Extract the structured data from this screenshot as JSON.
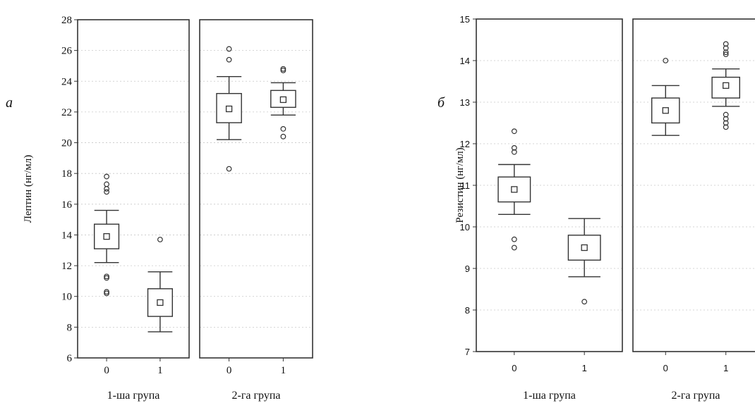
{
  "chart_data": [
    {
      "type": "box",
      "panel_letter": "а",
      "ylabel": "Лептин (нг/мл)",
      "ylim": [
        6,
        28
      ],
      "yticks": [
        6,
        8,
        10,
        12,
        14,
        16,
        18,
        20,
        22,
        24,
        26,
        28
      ],
      "groups": [
        {
          "label": "1-ша група",
          "boxes": [
            {
              "x": "0",
              "median": 13.9,
              "q1": 13.1,
              "q3": 14.7,
              "whisker_low": 12.2,
              "whisker_high": 15.6,
              "outliers": [
                17.8,
                17.3,
                17.0,
                16.8,
                11.3,
                11.2,
                10.3,
                10.2
              ]
            },
            {
              "x": "1",
              "median": 9.6,
              "q1": 8.7,
              "q3": 10.5,
              "whisker_low": 7.7,
              "whisker_high": 11.6,
              "outliers": [
                13.7
              ]
            }
          ]
        },
        {
          "label": "2-га група",
          "boxes": [
            {
              "x": "0",
              "median": 22.2,
              "q1": 21.3,
              "q3": 23.2,
              "whisker_low": 20.2,
              "whisker_high": 24.3,
              "outliers": [
                26.1,
                25.4,
                18.3
              ]
            },
            {
              "x": "1",
              "median": 22.8,
              "q1": 22.3,
              "q3": 23.4,
              "whisker_low": 21.8,
              "whisker_high": 23.9,
              "outliers": [
                24.8,
                24.7,
                20.9,
                20.4
              ]
            }
          ]
        }
      ],
      "grid": true
    },
    {
      "type": "box",
      "panel_letter": "б",
      "ylabel": "Резистин (нг/мл)",
      "ylim": [
        7,
        15
      ],
      "yticks": [
        7,
        8,
        9,
        10,
        11,
        12,
        13,
        14,
        15
      ],
      "groups": [
        {
          "label": "1-ша група",
          "boxes": [
            {
              "x": "0",
              "median": 10.9,
              "q1": 10.6,
              "q3": 11.2,
              "whisker_low": 10.3,
              "whisker_high": 11.5,
              "outliers": [
                12.3,
                11.9,
                11.8,
                9.7,
                9.5
              ]
            },
            {
              "x": "1",
              "median": 9.5,
              "q1": 9.2,
              "q3": 9.8,
              "whisker_low": 8.8,
              "whisker_high": 10.2,
              "outliers": [
                8.2
              ]
            }
          ]
        },
        {
          "label": "2-га група",
          "boxes": [
            {
              "x": "0",
              "median": 12.8,
              "q1": 12.5,
              "q3": 13.1,
              "whisker_low": 12.2,
              "whisker_high": 13.4,
              "outliers": [
                14.0
              ]
            },
            {
              "x": "1",
              "median": 13.4,
              "q1": 13.1,
              "q3": 13.6,
              "whisker_low": 12.9,
              "whisker_high": 13.8,
              "outliers": [
                14.4,
                14.3,
                14.2,
                14.15,
                12.7,
                12.6,
                12.5,
                12.4
              ]
            }
          ]
        }
      ],
      "grid": true
    }
  ]
}
